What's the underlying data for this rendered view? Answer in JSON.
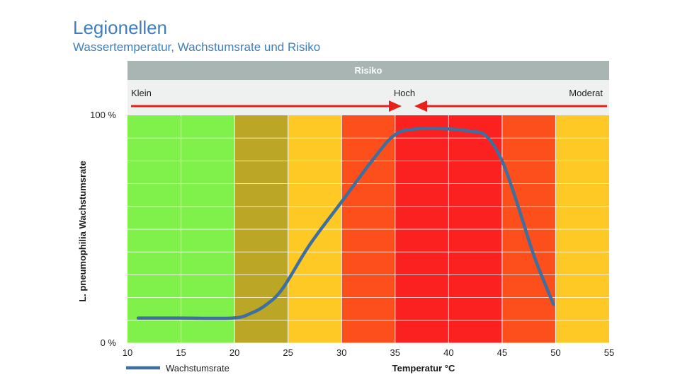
{
  "header": {
    "title": "Legionellen",
    "subtitle": "Wassertemperatur, Wachstumsrate und Risiko"
  },
  "risk_band": {
    "title": "Risiko",
    "labels": {
      "left": "Klein",
      "center": "Hoch",
      "right": "Moderat"
    },
    "arrow_color": "#e8201c",
    "header_color": "#a9b5b3",
    "band_color": "#eef1ef"
  },
  "chart_data": {
    "type": "line",
    "xlabel": "Temperatur °C",
    "ylabel": "L. pneumophilia Wachstumsrate",
    "xlim": [
      10,
      55
    ],
    "x_ticks": [
      "10",
      "15",
      "20",
      "25",
      "30",
      "35",
      "40",
      "45",
      "50",
      "55"
    ],
    "y_ticks": [
      {
        "value": 0,
        "label": "0 %"
      },
      {
        "value": 100,
        "label": "100 %"
      }
    ],
    "ylim": [
      0,
      100
    ],
    "grid": true,
    "zones": [
      {
        "from": 10,
        "to": 20,
        "color": "#80f04a"
      },
      {
        "from": 20,
        "to": 25,
        "color": "#bca625"
      },
      {
        "from": 25,
        "to": 30,
        "color": "#fec924"
      },
      {
        "from": 30,
        "to": 35,
        "color": "#fc4f1b"
      },
      {
        "from": 35,
        "to": 45,
        "color": "#fc2121"
      },
      {
        "from": 45,
        "to": 50,
        "color": "#fc4f1b"
      },
      {
        "from": 50,
        "to": 55,
        "color": "#fec924"
      }
    ],
    "series": [
      {
        "name": "Wachstumsrate",
        "color": "#3e6f9e",
        "x": [
          11,
          15,
          19.8,
          21.5,
          23,
          24.5,
          27,
          30,
          33,
          35,
          37,
          40,
          42,
          43.5,
          45,
          46.5,
          48,
          49.8
        ],
        "y": [
          11,
          11,
          11,
          13,
          17,
          24,
          43,
          62,
          81,
          91.5,
          94,
          94,
          93,
          91,
          80,
          60,
          38,
          17
        ]
      }
    ],
    "legend_position": "bottom-left"
  }
}
